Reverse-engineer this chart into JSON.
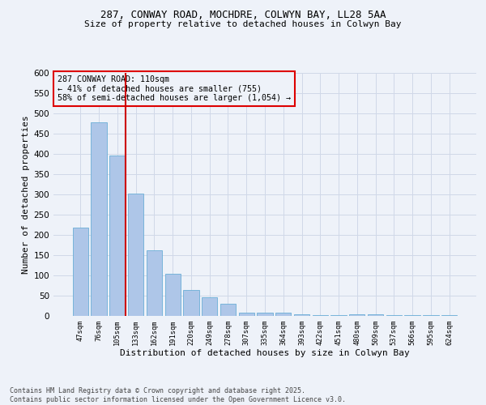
{
  "title_line1": "287, CONWAY ROAD, MOCHDRE, COLWYN BAY, LL28 5AA",
  "title_line2": "Size of property relative to detached houses in Colwyn Bay",
  "xlabel": "Distribution of detached houses by size in Colwyn Bay",
  "ylabel": "Number of detached properties",
  "categories": [
    "47sqm",
    "76sqm",
    "105sqm",
    "133sqm",
    "162sqm",
    "191sqm",
    "220sqm",
    "249sqm",
    "278sqm",
    "307sqm",
    "335sqm",
    "364sqm",
    "393sqm",
    "422sqm",
    "451sqm",
    "480sqm",
    "509sqm",
    "537sqm",
    "566sqm",
    "595sqm",
    "624sqm"
  ],
  "values": [
    218,
    478,
    396,
    302,
    163,
    105,
    65,
    47,
    31,
    9,
    8,
    9,
    5,
    3,
    3,
    4,
    4,
    2,
    3,
    2,
    3
  ],
  "bar_color": "#aec6e8",
  "bar_edge_color": "#6aaed6",
  "grid_color": "#d0d8e8",
  "background_color": "#eef2f9",
  "annotation_box_color": "#dd0000",
  "vline_color": "#cc0000",
  "vline_x_index": 2,
  "annotation_text_line1": "287 CONWAY ROAD: 110sqm",
  "annotation_text_line2": "← 41% of detached houses are smaller (755)",
  "annotation_text_line3": "58% of semi-detached houses are larger (1,054) →",
  "footer_line1": "Contains HM Land Registry data © Crown copyright and database right 2025.",
  "footer_line2": "Contains public sector information licensed under the Open Government Licence v3.0.",
  "ylim": [
    0,
    600
  ],
  "yticks": [
    0,
    50,
    100,
    150,
    200,
    250,
    300,
    350,
    400,
    450,
    500,
    550,
    600
  ]
}
